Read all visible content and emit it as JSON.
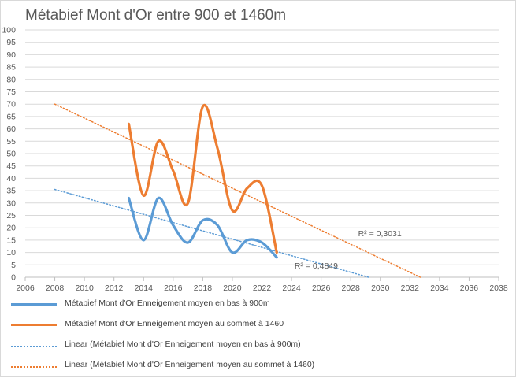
{
  "chart_data": {
    "type": "line",
    "title": "Métabief Mont d'Or entre 900 et 1460m",
    "xlabel": "",
    "ylabel": "",
    "xlim": [
      2006,
      2038
    ],
    "ylim": [
      0,
      100
    ],
    "x_ticks": [
      2006,
      2008,
      2010,
      2012,
      2014,
      2016,
      2018,
      2020,
      2022,
      2024,
      2026,
      2028,
      2030,
      2032,
      2034,
      2036,
      2038
    ],
    "y_ticks": [
      0,
      5,
      10,
      15,
      20,
      25,
      30,
      35,
      40,
      45,
      50,
      55,
      60,
      65,
      70,
      75,
      80,
      85,
      90,
      95,
      100
    ],
    "grid": true,
    "legend_position": "bottom",
    "series": [
      {
        "name": "Métabief Mont d'Or Enneigement moyen en bas à 900m",
        "color": "#5b9bd5",
        "style": "smooth",
        "x": [
          2013,
          2014,
          2015,
          2016,
          2017,
          2018,
          2019,
          2020,
          2021,
          2022,
          2023
        ],
        "values": [
          32,
          15,
          32,
          21,
          14,
          23,
          21,
          10,
          15,
          14,
          8
        ]
      },
      {
        "name": "Métabief Mont d'Or Enneigement moyen au sommet à 1460",
        "color": "#ed7d31",
        "style": "smooth",
        "x": [
          2013,
          2014,
          2015,
          2016,
          2017,
          2018,
          2019,
          2020,
          2021,
          2022,
          2023
        ],
        "values": [
          62,
          33,
          55,
          43,
          30,
          69,
          52,
          27,
          36,
          37,
          10
        ]
      },
      {
        "name": "Linear (Métabief Mont d'Or Enneigement moyen en bas à 900m)",
        "color": "#5b9bd5",
        "style": "dotted-trendline",
        "x": [
          2008,
          2029.2
        ],
        "values": [
          35.5,
          0
        ]
      },
      {
        "name": "Linear (Métabief Mont d'Or Enneigement moyen au sommet à 1460)",
        "color": "#ed7d31",
        "style": "dotted-trendline",
        "x": [
          2008,
          2032.7
        ],
        "values": [
          70,
          0
        ]
      }
    ],
    "annotations": [
      {
        "text": "R² = 0,4849",
        "x": 2024.2,
        "y": 3.5
      },
      {
        "text": "R² = 0,3031",
        "x": 2028.5,
        "y": 16.5
      }
    ]
  }
}
